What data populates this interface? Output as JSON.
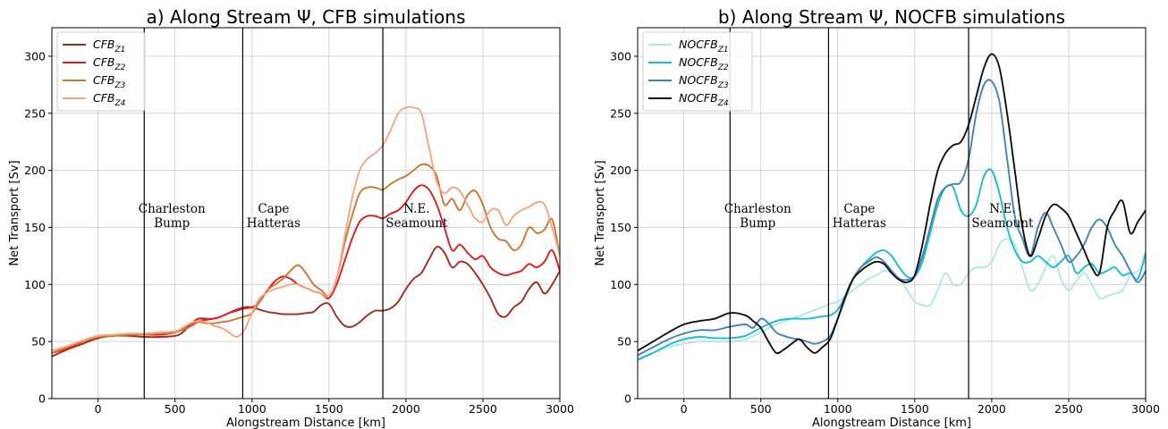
{
  "chart_data": [
    {
      "type": "line",
      "title": "a) Along Stream Ψ, CFB simulations",
      "xlabel": "Alongstream Distance [km]",
      "ylabel": "Net Transport [Sv]",
      "xlim": [
        -300,
        3000
      ],
      "ylim": [
        0,
        325
      ],
      "xticks": [
        0,
        500,
        1000,
        1500,
        2000,
        2500,
        3000
      ],
      "yticks": [
        0,
        50,
        100,
        150,
        200,
        250,
        300
      ],
      "grid": true,
      "legend_position": "upper-left",
      "vlines": [
        300,
        940,
        1850
      ],
      "annotations": [
        {
          "lines": [
            "Charleston",
            "Bump"
          ],
          "x": 480,
          "y": 158
        },
        {
          "lines": [
            "Cape",
            "Hatteras"
          ],
          "x": 1140,
          "y": 158
        },
        {
          "lines": [
            "N.E.",
            "Seamount"
          ],
          "x": 2070,
          "y": 158
        }
      ],
      "series": [
        {
          "name": "CFB",
          "sub": "Z1",
          "color": "#a52a20",
          "x": [
            -300,
            -200,
            -100,
            0,
            100,
            200,
            300,
            400,
            500,
            550,
            600,
            650,
            700,
            750,
            800,
            850,
            900,
            950,
            1000,
            1050,
            1100,
            1150,
            1200,
            1250,
            1300,
            1350,
            1400,
            1450,
            1500,
            1550,
            1600,
            1650,
            1700,
            1750,
            1800,
            1850,
            1900,
            1950,
            2000,
            2050,
            2100,
            2150,
            2200,
            2250,
            2300,
            2350,
            2400,
            2450,
            2500,
            2550,
            2600,
            2650,
            2700,
            2750,
            2800,
            2850,
            2900,
            2950,
            3000
          ],
          "y": [
            37,
            43,
            48,
            53,
            55,
            55,
            54,
            54,
            55,
            58,
            65,
            70,
            70,
            70,
            72,
            75,
            78,
            80,
            80,
            78,
            76,
            75,
            74,
            74,
            74,
            75,
            76,
            82,
            83,
            72,
            64,
            63,
            67,
            73,
            77,
            77,
            79,
            85,
            96,
            105,
            110,
            122,
            133,
            128,
            115,
            120,
            118,
            110,
            100,
            88,
            74,
            72,
            80,
            85,
            96,
            102,
            92,
            100,
            112
          ]
        },
        {
          "name": "CFB",
          "sub": "Z2",
          "color": "#e31a1c",
          "x": [
            -300,
            -200,
            -100,
            0,
            100,
            200,
            300,
            400,
            500,
            600,
            650,
            700,
            750,
            800,
            850,
            900,
            950,
            1000,
            1050,
            1100,
            1150,
            1200,
            1250,
            1300,
            1350,
            1400,
            1450,
            1500,
            1550,
            1600,
            1650,
            1700,
            1750,
            1800,
            1850,
            1900,
            1950,
            2000,
            2050,
            2100,
            2150,
            2200,
            2250,
            2300,
            2350,
            2400,
            2450,
            2500,
            2550,
            2600,
            2650,
            2700,
            2750,
            2800,
            2850,
            2900,
            2950,
            3000
          ],
          "y": [
            40,
            44,
            50,
            54,
            55,
            56,
            56,
            56,
            58,
            65,
            68,
            69,
            70,
            72,
            75,
            77,
            79,
            80,
            85,
            95,
            103,
            107,
            105,
            100,
            97,
            94,
            92,
            88,
            100,
            120,
            140,
            155,
            160,
            160,
            158,
            162,
            165,
            172,
            182,
            187,
            183,
            170,
            150,
            130,
            135,
            128,
            122,
            125,
            115,
            110,
            108,
            110,
            112,
            118,
            115,
            120,
            130,
            112
          ]
        },
        {
          "name": "CFB",
          "sub": "Z3",
          "color": "#cc7733",
          "x": [
            -300,
            -200,
            -100,
            0,
            100,
            200,
            300,
            400,
            500,
            600,
            650,
            700,
            750,
            800,
            850,
            900,
            950,
            1000,
            1050,
            1100,
            1150,
            1200,
            1250,
            1300,
            1350,
            1400,
            1450,
            1500,
            1550,
            1600,
            1650,
            1700,
            1750,
            1800,
            1850,
            1900,
            1950,
            2000,
            2050,
            2100,
            2150,
            2200,
            2250,
            2300,
            2350,
            2400,
            2450,
            2500,
            2550,
            2600,
            2650,
            2700,
            2750,
            2800,
            2850,
            2900,
            2950,
            3000
          ],
          "y": [
            40,
            45,
            50,
            54,
            55,
            56,
            56,
            57,
            58,
            63,
            67,
            66,
            66,
            67,
            68,
            70,
            72,
            75,
            85,
            95,
            100,
            105,
            112,
            117,
            110,
            100,
            95,
            90,
            105,
            135,
            160,
            180,
            185,
            185,
            183,
            188,
            192,
            195,
            200,
            205,
            204,
            195,
            170,
            175,
            165,
            178,
            182,
            170,
            150,
            140,
            138,
            130,
            135,
            150,
            145,
            148,
            157,
            125
          ]
        },
        {
          "name": "CFB",
          "sub": "Z4",
          "color": "#f4a582",
          "x": [
            -300,
            -200,
            -100,
            0,
            100,
            200,
            300,
            400,
            500,
            550,
            600,
            650,
            700,
            750,
            800,
            850,
            900,
            950,
            1000,
            1050,
            1100,
            1150,
            1200,
            1250,
            1300,
            1350,
            1400,
            1450,
            1500,
            1550,
            1600,
            1650,
            1700,
            1750,
            1800,
            1850,
            1900,
            1950,
            2000,
            2050,
            2100,
            2150,
            2200,
            2250,
            2300,
            2350,
            2400,
            2450,
            2500,
            2550,
            2600,
            2650,
            2700,
            2750,
            2800,
            2850,
            2900,
            2950,
            3000
          ],
          "y": [
            42,
            46,
            51,
            55,
            56,
            57,
            57,
            58,
            59,
            62,
            66,
            68,
            67,
            64,
            62,
            58,
            54,
            60,
            75,
            88,
            93,
            96,
            98,
            100,
            100,
            97,
            94,
            92,
            90,
            105,
            140,
            175,
            200,
            210,
            215,
            222,
            235,
            250,
            255,
            255,
            250,
            220,
            190,
            180,
            185,
            182,
            170,
            158,
            155,
            165,
            165,
            152,
            160,
            165,
            168,
            172,
            170,
            150,
            125
          ]
        }
      ]
    },
    {
      "type": "line",
      "title": "b) Along Stream Ψ, NOCFB simulations",
      "xlabel": "Alongstream Distance [km]",
      "ylabel": "Net Transport [Sv]",
      "xlim": [
        -300,
        3000
      ],
      "ylim": [
        0,
        325
      ],
      "xticks": [
        0,
        500,
        1000,
        1500,
        2000,
        2500,
        3000
      ],
      "yticks": [
        0,
        50,
        100,
        150,
        200,
        250,
        300
      ],
      "grid": true,
      "legend_position": "upper-left",
      "vlines": [
        300,
        940,
        1850
      ],
      "annotations": [
        {
          "lines": [
            "Charleston",
            "Bump"
          ],
          "x": 480,
          "y": 158
        },
        {
          "lines": [
            "Cape",
            "Hatteras"
          ],
          "x": 1140,
          "y": 158
        },
        {
          "lines": [
            "N.E.",
            "Seamount"
          ],
          "x": 2070,
          "y": 158
        }
      ],
      "series": [
        {
          "name": "NOCFB",
          "sub": "Z1",
          "color": "#b2e6ea",
          "x": [
            -300,
            -200,
            -100,
            0,
            100,
            200,
            300,
            400,
            500,
            600,
            700,
            800,
            900,
            950,
            1000,
            1050,
            1100,
            1150,
            1200,
            1250,
            1300,
            1350,
            1400,
            1450,
            1500,
            1550,
            1600,
            1650,
            1700,
            1750,
            1800,
            1850,
            1900,
            1950,
            2000,
            2050,
            2100,
            2150,
            2200,
            2250,
            2300,
            2350,
            2400,
            2450,
            2500,
            2550,
            2600,
            2650,
            2700,
            2750,
            2800,
            2850,
            2900,
            2950,
            3000
          ],
          "y": [
            35,
            40,
            45,
            48,
            50,
            50,
            50,
            52,
            58,
            65,
            70,
            75,
            80,
            83,
            85,
            90,
            95,
            100,
            105,
            108,
            112,
            110,
            105,
            95,
            85,
            82,
            82,
            95,
            110,
            100,
            100,
            110,
            115,
            115,
            120,
            135,
            140,
            135,
            115,
            95,
            100,
            115,
            125,
            105,
            95,
            103,
            110,
            100,
            88,
            90,
            92,
            95,
            108,
            112,
            120
          ]
        },
        {
          "name": "NOCFB",
          "sub": "Z2",
          "color": "#17becf",
          "x": [
            -300,
            -200,
            -100,
            0,
            100,
            200,
            300,
            400,
            500,
            600,
            700,
            800,
            900,
            950,
            1000,
            1050,
            1100,
            1150,
            1200,
            1250,
            1300,
            1350,
            1400,
            1450,
            1500,
            1550,
            1600,
            1650,
            1700,
            1750,
            1800,
            1850,
            1900,
            1950,
            2000,
            2050,
            2100,
            2150,
            2200,
            2250,
            2300,
            2350,
            2400,
            2450,
            2500,
            2550,
            2600,
            2650,
            2700,
            2750,
            2800,
            2850,
            2900,
            2950,
            3000
          ],
          "y": [
            34,
            40,
            47,
            52,
            54,
            53,
            53,
            55,
            62,
            68,
            70,
            70,
            72,
            73,
            78,
            90,
            105,
            115,
            122,
            128,
            130,
            125,
            115,
            107,
            107,
            120,
            145,
            170,
            185,
            185,
            165,
            160,
            170,
            195,
            200,
            180,
            150,
            130,
            120,
            120,
            125,
            120,
            115,
            120,
            125,
            110,
            115,
            118,
            110,
            112,
            115,
            108,
            110,
            105,
            128
          ]
        },
        {
          "name": "NOCFB",
          "sub": "Z3",
          "color": "#4682b4",
          "x": [
            -300,
            -200,
            -100,
            0,
            100,
            200,
            300,
            400,
            450,
            500,
            550,
            600,
            650,
            700,
            750,
            800,
            850,
            900,
            950,
            1000,
            1050,
            1100,
            1150,
            1200,
            1250,
            1300,
            1350,
            1400,
            1450,
            1500,
            1550,
            1600,
            1650,
            1700,
            1750,
            1800,
            1850,
            1900,
            1950,
            2000,
            2050,
            2100,
            2150,
            2200,
            2250,
            2300,
            2350,
            2400,
            2450,
            2500,
            2550,
            2600,
            2650,
            2700,
            2750,
            2800,
            2850,
            2900,
            2950,
            3000
          ],
          "y": [
            38,
            45,
            52,
            57,
            60,
            60,
            63,
            65,
            62,
            70,
            66,
            58,
            55,
            53,
            52,
            50,
            48,
            50,
            55,
            70,
            88,
            105,
            115,
            120,
            124,
            120,
            112,
            105,
            104,
            108,
            125,
            150,
            175,
            185,
            188,
            190,
            210,
            250,
            275,
            278,
            260,
            210,
            160,
            140,
            125,
            150,
            163,
            150,
            135,
            120,
            125,
            135,
            150,
            157,
            150,
            135,
            125,
            112,
            102,
            112
          ]
        },
        {
          "name": "NOCFB",
          "sub": "Z4",
          "color": "#111111",
          "x": [
            -300,
            -200,
            -100,
            0,
            100,
            200,
            300,
            400,
            450,
            500,
            550,
            600,
            650,
            700,
            750,
            800,
            850,
            900,
            950,
            1000,
            1050,
            1100,
            1150,
            1200,
            1250,
            1300,
            1350,
            1400,
            1450,
            1500,
            1550,
            1600,
            1650,
            1700,
            1750,
            1800,
            1850,
            1900,
            1950,
            2000,
            2050,
            2100,
            2150,
            2200,
            2250,
            2300,
            2350,
            2400,
            2450,
            2500,
            2550,
            2600,
            2650,
            2700,
            2750,
            2800,
            2850,
            2900,
            2950,
            3000
          ],
          "y": [
            42,
            50,
            58,
            65,
            68,
            70,
            75,
            73,
            68,
            62,
            50,
            40,
            43,
            48,
            52,
            45,
            40,
            45,
            52,
            70,
            90,
            105,
            112,
            117,
            120,
            118,
            110,
            104,
            102,
            108,
            135,
            170,
            200,
            215,
            222,
            225,
            240,
            265,
            290,
            302,
            290,
            250,
            200,
            150,
            125,
            140,
            160,
            170,
            167,
            160,
            145,
            130,
            115,
            110,
            150,
            165,
            173,
            145,
            155,
            165
          ]
        }
      ]
    }
  ]
}
